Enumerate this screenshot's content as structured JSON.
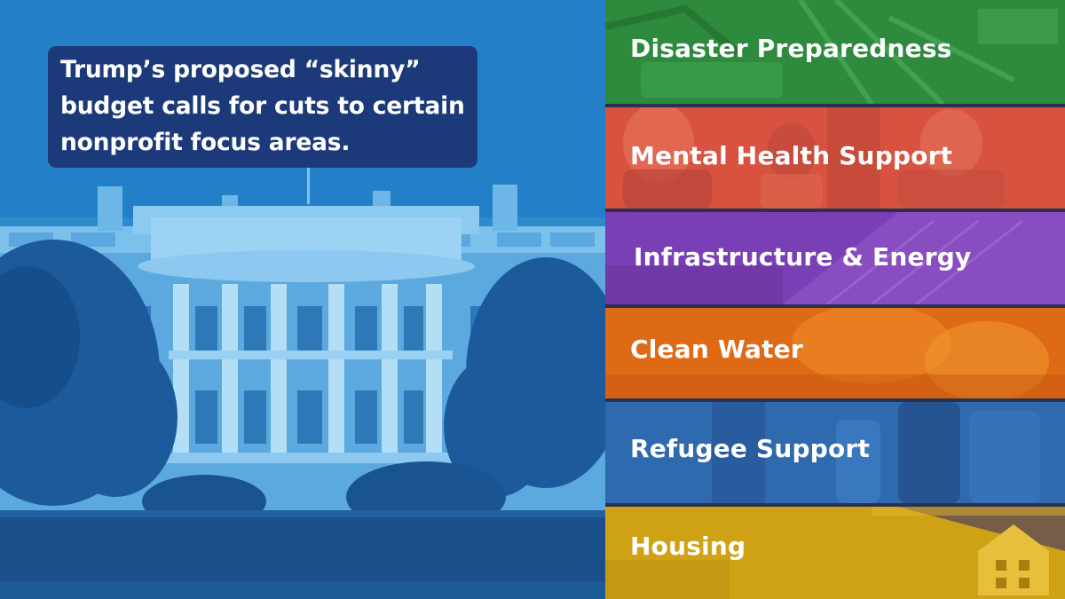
{
  "headline": {
    "line1": "Trump’s proposed “skinny”",
    "line2": "budget calls for cuts to certain",
    "line3": "nonprofit focus areas."
  },
  "focus_areas": [
    {
      "label": "Disaster Preparedness",
      "color": "#2e8a3c"
    },
    {
      "label": "Mental Health Support",
      "color": "#d8533f"
    },
    {
      "label": "Infrastructure & Energy",
      "color": "#7b3fb5"
    },
    {
      "label": "Clean Water",
      "color": "#df6a16"
    },
    {
      "label": "Refugee Support",
      "color": "#2f6aae"
    },
    {
      "label": "Housing",
      "color": "#cfa215"
    }
  ],
  "colors": {
    "left_tint": "#1f78c0",
    "headline_bg": "#1c3a7a"
  }
}
